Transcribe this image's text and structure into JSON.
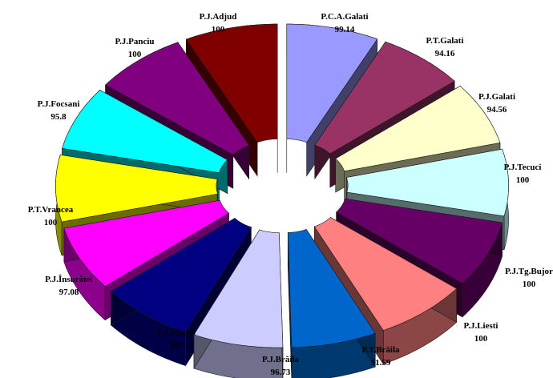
{
  "chart_data": {
    "type": "pie",
    "style": "exploded-3d",
    "title": "",
    "legend": "none",
    "slices": [
      {
        "label": "P.C.A.Galati",
        "value": 99.14,
        "color": "#9999ff"
      },
      {
        "label": "P.T.Galati",
        "value": 94.16,
        "color": "#993366"
      },
      {
        "label": "P.J.Galati",
        "value": 94.56,
        "color": "#ffffcc"
      },
      {
        "label": "P.J.Tecuci",
        "value": 100,
        "color": "#ccffff"
      },
      {
        "label": "P.J.Tg.Bujor",
        "value": 100,
        "color": "#660066"
      },
      {
        "label": "P.J.Liesti",
        "value": 100,
        "color": "#ff8080"
      },
      {
        "label": "P.T.Brăila",
        "value": 91.59,
        "color": "#0066cc"
      },
      {
        "label": "P.J.Brăila",
        "value": 96.73,
        "color": "#ccccff"
      },
      {
        "label": "P.J.Făurei",
        "value": 100,
        "color": "#000080"
      },
      {
        "label": "P.J.Însurătei",
        "value": 97.08,
        "color": "#ff00ff"
      },
      {
        "label": "P.T.Vrancea",
        "value": 100,
        "color": "#ffff00"
      },
      {
        "label": "P.J.Focsani",
        "value": 95.8,
        "color": "#00ffff"
      },
      {
        "label": "P.J.Panciu",
        "value": 100,
        "color": "#800080"
      },
      {
        "label": "P.J.Adjud",
        "value": 100,
        "color": "#800000"
      }
    ]
  }
}
